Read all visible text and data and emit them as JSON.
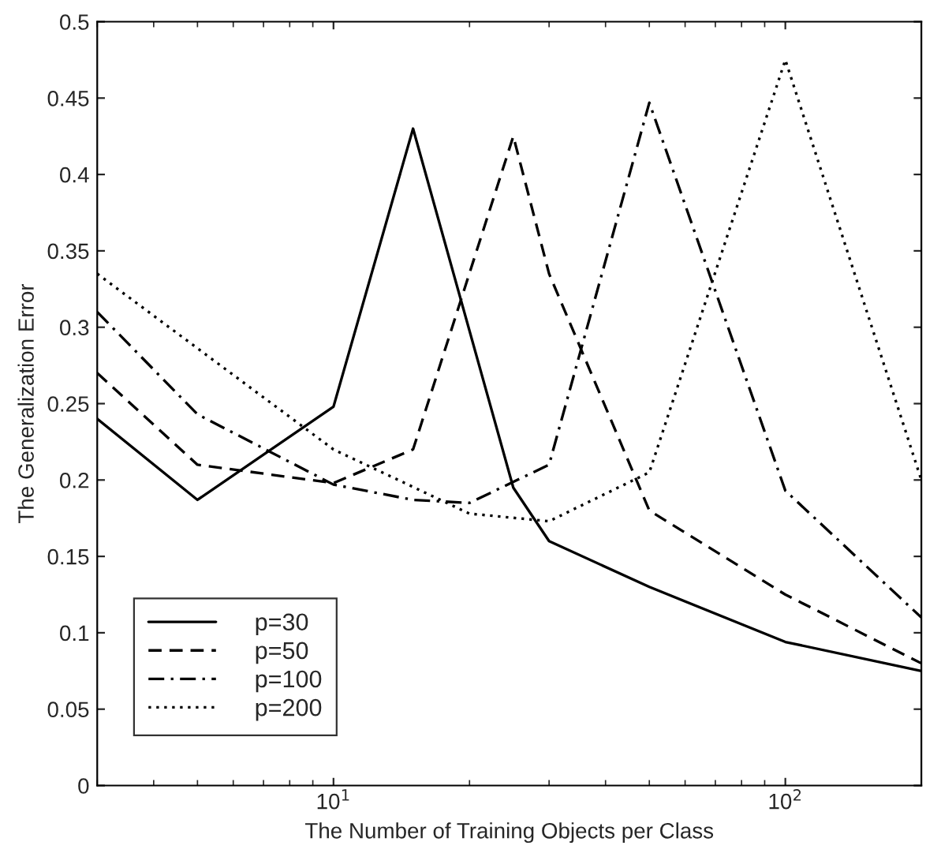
{
  "chart_data": {
    "type": "line",
    "xlabel": "The Number of Training Objects per Class",
    "ylabel": "The Generalization Error",
    "log": "x",
    "xlim": [
      3,
      200
    ],
    "xticks": [
      {
        "value": 10,
        "label": "10$^{1}$"
      },
      {
        "value": 100,
        "label": "10$^{2}$"
      }
    ],
    "ylim": [
      0,
      0.5
    ],
    "yticks": [
      0,
      0.05,
      0.1,
      0.15,
      0.2,
      0.25,
      0.3,
      0.35,
      0.4,
      0.45,
      0.5
    ],
    "grid": false,
    "legend": "bottom left",
    "series": [
      {
        "name": "p=30",
        "color": "#000000",
        "line_style": "solid",
        "x": [
          3,
          5,
          10,
          15,
          25,
          30,
          50,
          100,
          200
        ],
        "values": [
          0.24,
          0.187,
          0.248,
          0.43,
          0.195,
          0.16,
          0.13,
          0.094,
          0.075
        ]
      },
      {
        "name": "p=50",
        "color": "#000000",
        "line_style": "dashed",
        "x": [
          3,
          5,
          10,
          15,
          25,
          30,
          50,
          100,
          200
        ],
        "values": [
          0.27,
          0.21,
          0.198,
          0.22,
          0.425,
          0.335,
          0.18,
          0.125,
          0.08
        ]
      },
      {
        "name": "p=100",
        "color": "#000000",
        "line_style": "dashdot",
        "x": [
          3,
          5,
          10,
          15,
          20,
          30,
          50,
          100,
          200
        ],
        "values": [
          0.31,
          0.243,
          0.197,
          0.187,
          0.185,
          0.21,
          0.447,
          0.193,
          0.11
        ]
      },
      {
        "name": "p=200",
        "color": "#000000",
        "line_style": "dotted",
        "x": [
          3,
          10,
          20,
          30,
          50,
          100,
          200
        ],
        "values": [
          0.335,
          0.22,
          0.178,
          0.173,
          0.205,
          0.475,
          0.2
        ]
      }
    ]
  }
}
